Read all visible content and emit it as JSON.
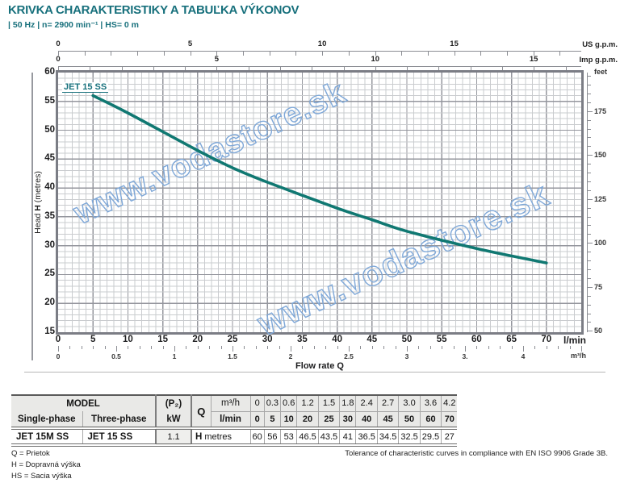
{
  "title": "KRIVKA CHARAKTERISTIKY A TABUĽKA VÝKONOV",
  "subtitle": "| 50 Hz | n= 2900 min⁻¹ | HS= 0 m",
  "colors": {
    "teal": "#17707c",
    "curve": "#107872",
    "watermark": "#7fa8d8"
  },
  "watermark_text": "www.vodastore.sk",
  "chart_data": {
    "type": "line",
    "curve_label": "JET 15 SS",
    "series": [
      {
        "name": "JET 15 SS",
        "x_lmin": [
          5,
          10,
          20,
          25,
          30,
          40,
          45,
          50,
          60,
          70
        ],
        "head_m": [
          56,
          53,
          46.5,
          43.5,
          41,
          36.5,
          34.5,
          32.5,
          29.5,
          27
        ]
      }
    ],
    "xlabel": {
      "pre": "Flow rate ",
      "key": "Q"
    },
    "ylabel": {
      "pre": "Head ",
      "key": "H",
      "post": " (metres)"
    },
    "x_axis_lmin": {
      "unit": "l/min",
      "labels": [
        0,
        5,
        10,
        15,
        20,
        25,
        30,
        35,
        40,
        45,
        50,
        55,
        60,
        65,
        70
      ],
      "range": [
        0,
        75
      ]
    },
    "x_axis_m3h": {
      "unit": "m³/h",
      "labels": [
        {
          "v": 0,
          "t": "0"
        },
        {
          "v": 0.5,
          "t": "0.5"
        },
        {
          "v": 1,
          "t": "1"
        },
        {
          "v": 1.5,
          "t": "1.5"
        },
        {
          "v": 2,
          "t": "2"
        },
        {
          "v": 2.5,
          "t": "2.5"
        },
        {
          "v": 3,
          "t": "3"
        },
        {
          "v": 3.5,
          "t": "3."
        },
        {
          "v": 4,
          "t": "4"
        }
      ]
    },
    "x_axis_us_gpm": {
      "unit": "US g.p.m.",
      "labels": [
        0,
        5,
        10,
        15
      ]
    },
    "x_axis_imp_gpm": {
      "unit": "Imp g.p.m.",
      "labels": [
        0,
        5,
        10,
        15
      ]
    },
    "y_axis_m": {
      "labels": [
        60,
        55,
        50,
        45,
        40,
        35,
        30,
        25,
        20,
        15
      ],
      "range": [
        15,
        60
      ]
    },
    "y_axis_feet": {
      "unit": "feet",
      "labels": [
        175,
        150,
        125,
        100,
        75,
        50
      ]
    },
    "grid": "on",
    "legend_position": "top-left-inside"
  },
  "table": {
    "header": {
      "model": "MODEL",
      "single_phase": "Single-phase",
      "three_phase": "Three-phase",
      "p2": "(P₂)",
      "kw": "kW",
      "q": "Q",
      "m3h_label": "m³/h",
      "lmin_label": "l/min",
      "m3h_values": [
        "0",
        "0.3",
        "0.6",
        "1.2",
        "1.5",
        "1.8",
        "2.4",
        "2.7",
        "3.0",
        "3.6",
        "4.2"
      ],
      "lmin_values": [
        "0",
        "5",
        "10",
        "20",
        "25",
        "30",
        "40",
        "45",
        "50",
        "60",
        "70"
      ]
    },
    "rows": [
      {
        "single_phase": "JET 15M SS",
        "three_phase": "JET 15 SS",
        "kw": "1.1",
        "h_label": "H",
        "h_unit": "metres",
        "values": [
          "60",
          "56",
          "53",
          "46.5",
          "43.5",
          "41",
          "36.5",
          "34.5",
          "32.5",
          "29.5",
          "27"
        ]
      }
    ]
  },
  "footer": {
    "legend": [
      "Q = Prietok",
      "H = Dopravná výška",
      "HS = Sacia výška"
    ],
    "tolerance": "Tolerance of characteristic curves in compliance with EN ISO 9906 Grade 3B."
  }
}
